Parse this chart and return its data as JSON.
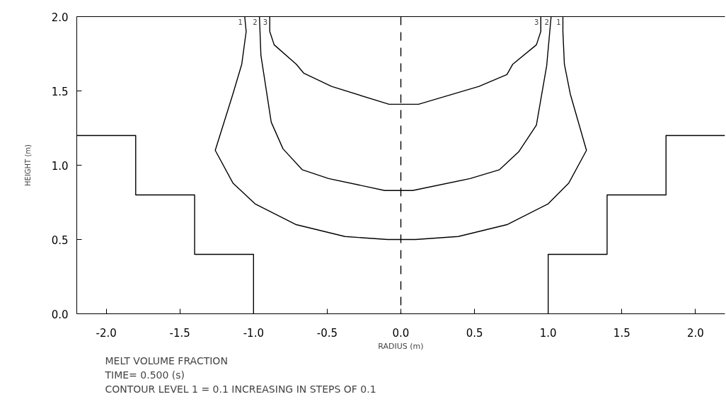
{
  "chart_data": {
    "type": "line",
    "xlabel": "RADIUS (m)",
    "ylabel": "HEIGHT (m)",
    "xlim": [
      -2.2,
      2.2
    ],
    "ylim": [
      0,
      2.0
    ],
    "xticks": [
      {
        "value": -2,
        "label": "-2.0"
      },
      {
        "value": -1.5,
        "label": "-1.5"
      },
      {
        "value": -1,
        "label": "-1.0"
      },
      {
        "value": -0.5,
        "label": "-0.5"
      },
      {
        "value": 0,
        "label": "0.0"
      },
      0.5,
      {
        "value": 1,
        "label": "1.0"
      },
      1.5,
      {
        "value": 2,
        "label": "2.0"
      }
    ],
    "yticks": [
      {
        "value": 0,
        "label": "0.0"
      },
      0.5,
      {
        "value": 1,
        "label": "1.0"
      },
      1.5,
      {
        "value": 2,
        "label": "2.0"
      }
    ],
    "grid": false,
    "marker": "none",
    "line_style": "solid",
    "series": [
      {
        "color": "#000000",
        "x": [
          -1.06,
          -1.05,
          -1.08,
          -1.14,
          -1.26,
          -1.14,
          -0.99,
          -0.71,
          -0.38,
          -0.09,
          0.1,
          0.39,
          0.72,
          1.0,
          1.14,
          1.26,
          1.15,
          1.11,
          1.1,
          1.1
        ],
        "values": [
          2.0,
          1.9,
          1.68,
          1.48,
          1.1,
          0.88,
          0.74,
          0.6,
          0.52,
          0.5,
          0.5,
          0.52,
          0.6,
          0.74,
          0.88,
          1.1,
          1.48,
          1.68,
          1.9,
          2.0
        ]
      },
      {
        "color": "#000000",
        "x": [
          -0.96,
          -0.95,
          -0.88,
          -0.8,
          -0.67,
          -0.49,
          -0.11,
          0.08,
          0.47,
          0.67,
          0.8,
          0.92,
          0.99,
          1.02
        ],
        "values": [
          2.0,
          1.74,
          1.29,
          1.11,
          0.97,
          0.91,
          0.83,
          0.83,
          0.91,
          0.97,
          1.09,
          1.27,
          1.67,
          2.0
        ]
      },
      {
        "color": "#000000",
        "x": [
          -0.89,
          -0.89,
          -0.86,
          -0.71,
          -0.66,
          -0.47,
          -0.08,
          0.12,
          0.53,
          0.72,
          0.76,
          0.92,
          0.95,
          0.95
        ],
        "values": [
          2.0,
          1.9,
          1.81,
          1.68,
          1.62,
          1.53,
          1.41,
          1.41,
          1.53,
          1.61,
          1.68,
          1.81,
          1.9,
          2.0
        ]
      },
      {
        "color": "#000000",
        "x": [
          -2.2,
          -1.8,
          -1.8,
          -1.4,
          -1.4,
          -1.0,
          -1.0,
          null,
          1.0,
          1.0,
          1.4,
          1.4,
          1.8,
          1.8,
          2.2
        ],
        "values": [
          1.2,
          1.2,
          0.8,
          0.8,
          0.4,
          0.4,
          0,
          null,
          0,
          0.4,
          0.4,
          0.8,
          0.8,
          1.2,
          1.2
        ]
      }
    ],
    "ref_lines": [
      {
        "axis": "x",
        "value": 0,
        "line_style": "dashed",
        "color": "#000000"
      }
    ],
    "annotations": [
      {
        "text": "1",
        "x": -1.06,
        "y": 2.0
      },
      {
        "text": "2",
        "x": -0.96,
        "y": 2.0
      },
      {
        "text": "3",
        "x": -0.89,
        "y": 2.0
      },
      {
        "text": "3",
        "x": 0.95,
        "y": 2.0
      },
      {
        "text": "2",
        "x": 1.02,
        "y": 2.0
      },
      {
        "text": "1",
        "x": 1.1,
        "y": 2.0
      },
      "MELT VOLUME FRACTION",
      "TIME=  0.500  (s)",
      "CONTOUR LEVEL 1 = 0.1 INCREASING IN STEPS OF 0.1"
    ]
  }
}
